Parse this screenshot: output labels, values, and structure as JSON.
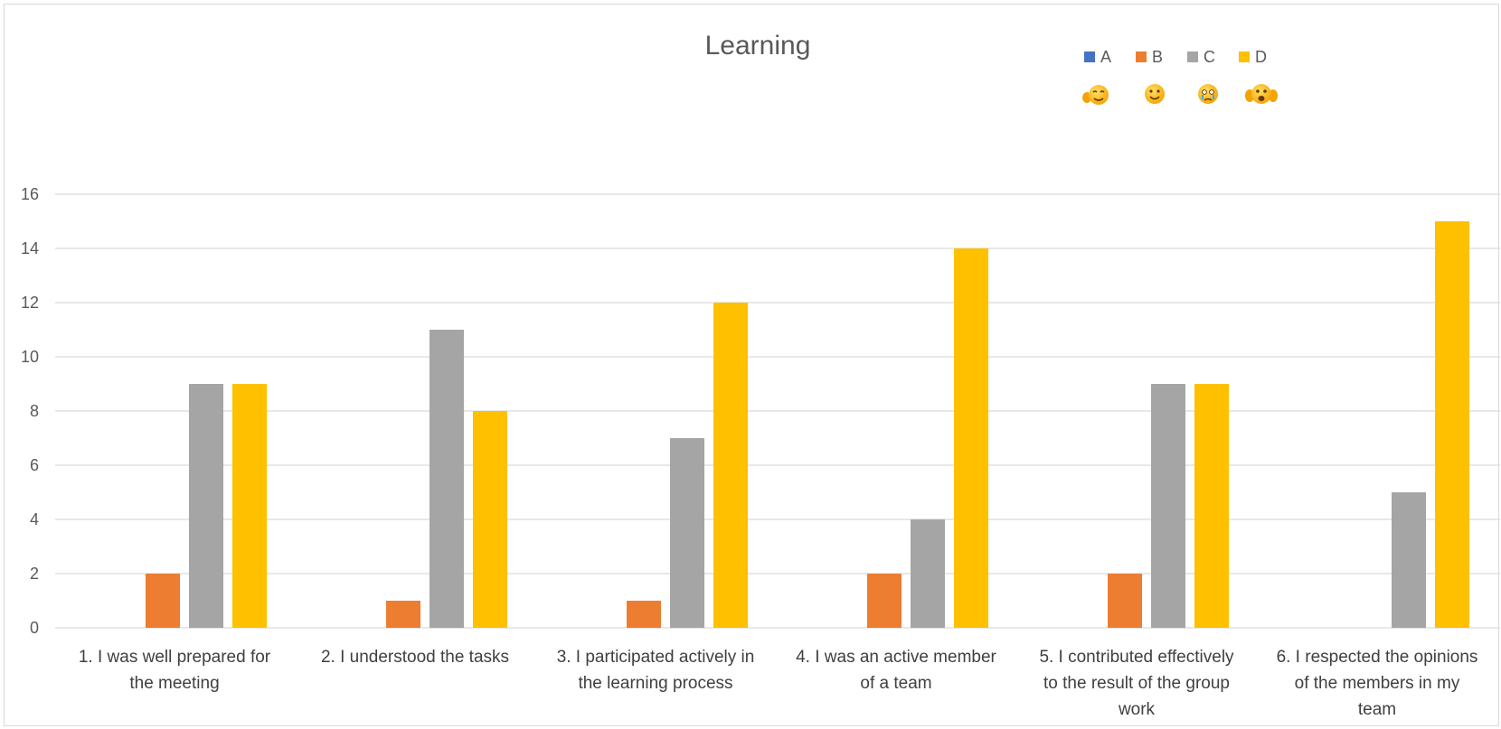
{
  "chart_data": {
    "type": "bar",
    "title": "Learning",
    "categories": [
      [
        "1. I was well prepared for",
        "the meeting"
      ],
      [
        "2. I understood the tasks"
      ],
      [
        "3. I participated actively in",
        "the learning process"
      ],
      [
        "4. I was an active member",
        "of a team"
      ],
      [
        "5. I contributed effectively",
        "to the result of the group",
        "work"
      ],
      [
        "6. I respected the opinions",
        "of the members in my",
        "team"
      ]
    ],
    "series": [
      {
        "name": "A",
        "color": "#4472c4",
        "values": [
          0,
          0,
          0,
          0,
          0,
          0
        ]
      },
      {
        "name": "B",
        "color": "#ed7d31",
        "values": [
          2,
          1,
          1,
          2,
          2,
          0
        ]
      },
      {
        "name": "C",
        "color": "#a5a5a5",
        "values": [
          9,
          11,
          7,
          4,
          9,
          5
        ]
      },
      {
        "name": "D",
        "color": "#ffc000",
        "values": [
          9,
          8,
          12,
          14,
          9,
          15
        ]
      }
    ],
    "ylim": [
      0,
      16
    ],
    "yticks": [
      0,
      2,
      4,
      6,
      8,
      10,
      12,
      14,
      16
    ],
    "grid": true,
    "legend_position": "top-right",
    "legend_icons": [
      "smirk-emoji-icon",
      "smile-emoji-icon",
      "crying-emoji-icon",
      "clapping-emoji-icon"
    ]
  }
}
